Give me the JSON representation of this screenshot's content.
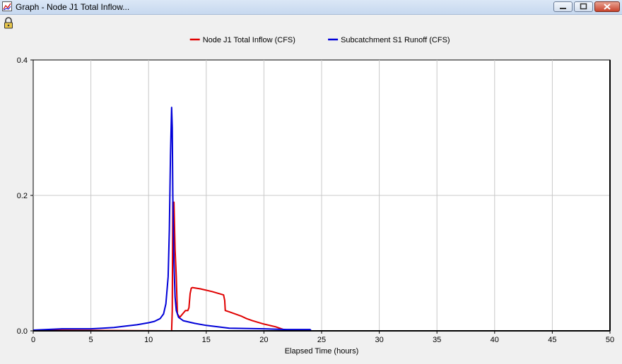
{
  "window": {
    "title": "Graph - Node J1 Total Inflow...",
    "icons": {
      "app": "graph-icon",
      "toolbar": "lock-icon",
      "minimize": "minimize-icon",
      "maximize": "maximize-icon",
      "close": "close-icon"
    }
  },
  "chart_data": {
    "type": "line",
    "title": "",
    "xlabel": "Elapsed Time (hours)",
    "ylabel": "",
    "xlim": [
      0,
      50
    ],
    "ylim": [
      0,
      0.4
    ],
    "xticks": [
      "0",
      "5",
      "10",
      "15",
      "20",
      "25",
      "30",
      "35",
      "40",
      "45",
      "50"
    ],
    "yticks": [
      "0.0",
      "0.2",
      "0.4"
    ],
    "grid": true,
    "legend": "top-center",
    "series": [
      {
        "name": "Node J1 Total Inflow (CFS)",
        "color": "#e00000",
        "x": [
          0,
          12.0,
          12.05,
          12.1,
          12.2,
          12.3,
          12.4,
          12.5,
          12.7,
          13.0,
          13.2,
          13.4,
          13.5,
          13.6,
          13.7,
          13.8,
          14.5,
          15.5,
          16.5,
          16.6,
          16.65,
          17.0,
          18.0,
          18.5,
          19.0,
          20.0,
          21.0,
          21.7,
          22.0,
          48
        ],
        "y": [
          0.001,
          0.0,
          0.03,
          0.19,
          0.19,
          0.12,
          0.08,
          0.025,
          0.02,
          0.026,
          0.03,
          0.03,
          0.034,
          0.055,
          0.063,
          0.064,
          0.062,
          0.058,
          0.053,
          0.045,
          0.03,
          0.028,
          0.022,
          0.018,
          0.015,
          0.01,
          0.006,
          0.002,
          0.0,
          0.0
        ]
      },
      {
        "name": "Subcatchment S1 Runoff (CFS)",
        "color": "#0000d8",
        "x": [
          0,
          2.5,
          3.0,
          5.0,
          6.0,
          7.0,
          8.0,
          9.0,
          10.0,
          10.5,
          11.0,
          11.3,
          11.5,
          11.7,
          11.8,
          11.9,
          12.0,
          12.05,
          12.1,
          12.2,
          12.3,
          12.4,
          12.6,
          13.0,
          14.0,
          15.0,
          16.0,
          17.0,
          20.0,
          22.0,
          23.0,
          24.0,
          24.1,
          48
        ],
        "y": [
          0.001,
          0.003,
          0.003,
          0.003,
          0.004,
          0.005,
          0.007,
          0.009,
          0.012,
          0.014,
          0.018,
          0.025,
          0.04,
          0.08,
          0.15,
          0.26,
          0.33,
          0.3,
          0.2,
          0.1,
          0.05,
          0.03,
          0.02,
          0.015,
          0.011,
          0.008,
          0.006,
          0.004,
          0.003,
          0.002,
          0.002,
          0.002,
          0.0,
          0.0
        ]
      }
    ]
  }
}
